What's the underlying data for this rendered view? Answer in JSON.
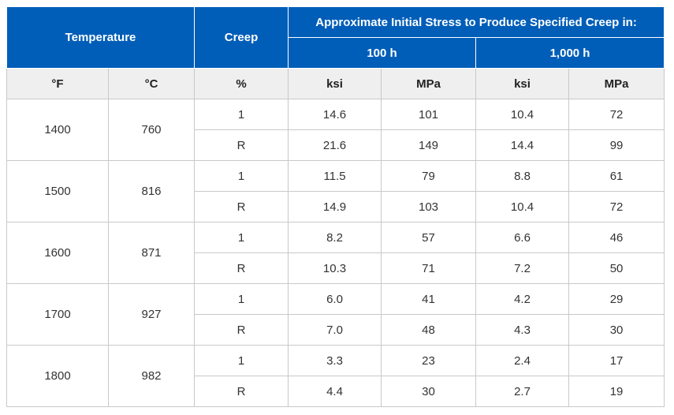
{
  "headers": {
    "temperature": "Temperature",
    "creep": "Creep",
    "stress_group": "Approximate Initial Stress to Produce Specified Creep in:",
    "h100": "100 h",
    "h1000": "1,000 h",
    "f": "°F",
    "c": "°C",
    "pct": "%",
    "ksi_100": "ksi",
    "mpa_100": "MPa",
    "ksi_1000": "ksi",
    "mpa_1000": "MPa"
  },
  "rows": [
    {
      "f": "1400",
      "c": "760",
      "a": {
        "creep": "1",
        "ksi100": "14.6",
        "mpa100": "101",
        "ksi1000": "10.4",
        "mpa1000": "72"
      },
      "b": {
        "creep": "R",
        "ksi100": "21.6",
        "mpa100": "149",
        "ksi1000": "14.4",
        "mpa1000": "99"
      }
    },
    {
      "f": "1500",
      "c": "816",
      "a": {
        "creep": "1",
        "ksi100": "11.5",
        "mpa100": "79",
        "ksi1000": "8.8",
        "mpa1000": "61"
      },
      "b": {
        "creep": "R",
        "ksi100": "14.9",
        "mpa100": "103",
        "ksi1000": "10.4",
        "mpa1000": "72"
      }
    },
    {
      "f": "1600",
      "c": "871",
      "a": {
        "creep": "1",
        "ksi100": "8.2",
        "mpa100": "57",
        "ksi1000": "6.6",
        "mpa1000": "46"
      },
      "b": {
        "creep": "R",
        "ksi100": "10.3",
        "mpa100": "71",
        "ksi1000": "7.2",
        "mpa1000": "50"
      }
    },
    {
      "f": "1700",
      "c": "927",
      "a": {
        "creep": "1",
        "ksi100": "6.0",
        "mpa100": "41",
        "ksi1000": "4.2",
        "mpa1000": "29"
      },
      "b": {
        "creep": "R",
        "ksi100": "7.0",
        "mpa100": "48",
        "ksi1000": "4.3",
        "mpa1000": "30"
      }
    },
    {
      "f": "1800",
      "c": "982",
      "a": {
        "creep": "1",
        "ksi100": "3.3",
        "mpa100": "23",
        "ksi1000": "2.4",
        "mpa1000": "17"
      },
      "b": {
        "creep": "R",
        "ksi100": "4.4",
        "mpa100": "30",
        "ksi1000": "2.7",
        "mpa1000": "19"
      }
    }
  ]
}
